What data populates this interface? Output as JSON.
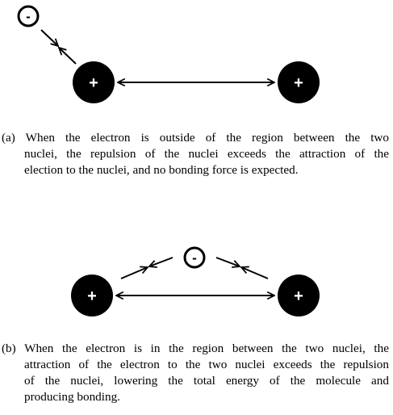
{
  "diagram_a": {
    "electron_label": "-",
    "nucleus_left_label": "+",
    "nucleus_right_label": "+"
  },
  "diagram_b": {
    "electron_label": "-",
    "nucleus_left_label": "+",
    "nucleus_right_label": "+"
  },
  "captions": {
    "a": {
      "line1": "(a) When the electron is outside of the region between the two",
      "line2": "nuclei, the repulsion of the nuclei exceeds the attraction of the",
      "line3": "election to the nuclei, and no bonding force is expected."
    },
    "b": {
      "line1": "(b) When the electron is in the region between the two nuclei, the",
      "line2": "attraction of the electron to the two nuclei exceeds the repulsion",
      "line3": "of the nuclei, lowering the total energy of the molecule and",
      "line4": "producing bonding."
    }
  },
  "colors": {
    "nucleus_fill": "#000000",
    "electron_stroke": "#000000",
    "background": "#ffffff"
  }
}
